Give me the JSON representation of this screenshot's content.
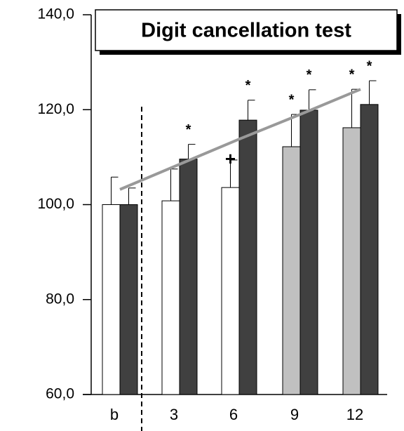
{
  "chart_data": {
    "type": "bar",
    "title": "Digit cancellation test",
    "categories": [
      "b",
      "3",
      "6",
      "9",
      "12"
    ],
    "series": [
      {
        "color": [
          "#ffffff",
          "#ffffff",
          "#ffffff",
          "#c0c0c0",
          "#c0c0c0"
        ],
        "values": [
          100,
          100.8,
          103.6,
          112.2,
          116.2
        ],
        "errors": [
          5.8,
          6.7,
          5.8,
          6.8,
          8.1
        ],
        "markers": [
          null,
          null,
          "+",
          "*",
          "*"
        ]
      },
      {
        "color": "#404040",
        "values": [
          100,
          109.6,
          117.8,
          119.9,
          121.1
        ],
        "errors": [
          3.5,
          3.1,
          4.2,
          4.3,
          5.0
        ],
        "markers": [
          null,
          "*",
          "*",
          "*",
          "*"
        ]
      }
    ],
    "trend": {
      "color": "#999999",
      "values": [
        103.2,
        108.5,
        113.8,
        119.0,
        124.3
      ]
    },
    "ylim": [
      60,
      140
    ],
    "yticks": [
      {
        "value": 60,
        "label": "60,0"
      },
      {
        "value": 80,
        "label": "80,0"
      },
      {
        "value": 100,
        "label": "100,0"
      },
      {
        "value": 120,
        "label": "120,0"
      },
      {
        "value": 140,
        "label": "140,0"
      }
    ]
  }
}
